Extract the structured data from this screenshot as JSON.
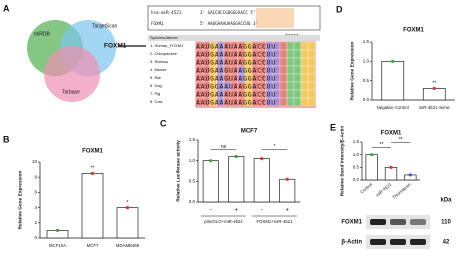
{
  "panel_labels": [
    "A",
    "B",
    "C",
    "D",
    "E"
  ],
  "venn": {
    "sets": [
      "miRDB",
      "TargetScan",
      "Tarbase"
    ],
    "gene": "FOXM1"
  },
  "alignment": {
    "mirna": "hsa-miR-4521",
    "mirna_seq": "3' GACCUCCGUGGGAACC 5'",
    "target": "FOXM1",
    "target_seq": "5' AAUGAAAUAAGGACCUU 3'",
    "stars": "*****",
    "header": "Species/Abbrev",
    "rows": [
      {
        "species": "1. Human_FOXM1",
        "seq": "AAUGAAAUAAGGACCUU"
      },
      {
        "species": "2. Chimpanzee",
        "seq": "AAUGAAAUAAGGACCUU"
      },
      {
        "species": "3. Rhesus",
        "seq": "AAUGAAAUAAGGACCUU"
      },
      {
        "species": "4. Mouse",
        "seq": "AAUGAAGUAAGGACCUU"
      },
      {
        "species": "5. Rat",
        "seq": "AAUGAAGUAAGGACCUU"
      },
      {
        "species": "6. Dog",
        "seq": "AAUGGAAUAAGGACCUU"
      },
      {
        "species": "7. Pig",
        "seq": "AAUGAAAUAAGGACCUU"
      },
      {
        "species": "8. Cow",
        "seq": "AAUGAAAUAAGGACCUU"
      }
    ]
  },
  "chart_data": [
    {
      "type": "bar",
      "title": "FOXM1",
      "y_label": "Relative Gene Expression",
      "categories": [
        "MCF10A",
        "MCF7",
        "MDAMB468"
      ],
      "values": [
        1,
        8.5,
        4
      ],
      "color": "#222222",
      "point_colors": [
        "#33aa33",
        "#dd3333",
        "#dd3333"
      ],
      "ylim": [
        0,
        10
      ],
      "yticks": [
        0,
        2,
        4,
        6,
        8,
        10
      ],
      "annotations": [
        "**",
        "*"
      ]
    },
    {
      "type": "bar",
      "title": "MCF7",
      "y_label": "Relative Luciferase activity",
      "categories": [
        "-",
        "+",
        "-",
        "+"
      ],
      "group_labels": [
        "pmirGLO+miR-4521",
        "FOXM1+miR-4521"
      ],
      "values": [
        1.0,
        1.1,
        1.05,
        0.55
      ],
      "color": "#222222",
      "point_colors": [
        "#33aa33",
        "#33aa33",
        "#dd3333",
        "#dd3333"
      ],
      "ylim": [
        0,
        1.5
      ],
      "yticks": [
        {
          "value": 0,
          "label": "0.0"
        },
        0.5,
        {
          "value": 1,
          "label": "1.0"
        },
        1.5
      ],
      "annotations": [
        "ns",
        "*"
      ]
    },
    {
      "type": "bar",
      "title": "FOXM1",
      "y_label": "Relative Gene Expression",
      "categories": [
        "Negative Control",
        "miR-4521 mimic"
      ],
      "values": [
        1.0,
        0.3
      ],
      "color": "#222222",
      "point_colors": [
        "#33aa33",
        "#dd3333"
      ],
      "ylim": [
        0,
        1.5
      ],
      "yticks": [
        {
          "value": 0,
          "label": "0.0"
        },
        0.5,
        {
          "value": 1,
          "label": "1.0"
        },
        1.5
      ],
      "annotations": [
        "**"
      ]
    },
    {
      "type": "bar",
      "title": "FOXM1",
      "y_label": "Relative Band Intensity/β-Actin",
      "categories": [
        "Control",
        "miR-4521",
        "Thioredoxin"
      ],
      "values": [
        1.0,
        0.5,
        0.2
      ],
      "color": "#222222",
      "point_colors": [
        "#33aa33",
        "#dd3333",
        "#3355dd"
      ],
      "ylim": [
        0,
        1.5
      ],
      "yticks": [
        {
          "value": 0,
          "label": "0.0"
        },
        0.5,
        {
          "value": 1,
          "label": "1.0"
        },
        1.5
      ],
      "annotations": [
        "**",
        "**"
      ]
    }
  ],
  "blot": {
    "unit": "kDa",
    "rows": [
      {
        "protein": "FOXM1",
        "size": 110
      },
      {
        "protein": "β-Actin",
        "size": 42
      }
    ]
  }
}
